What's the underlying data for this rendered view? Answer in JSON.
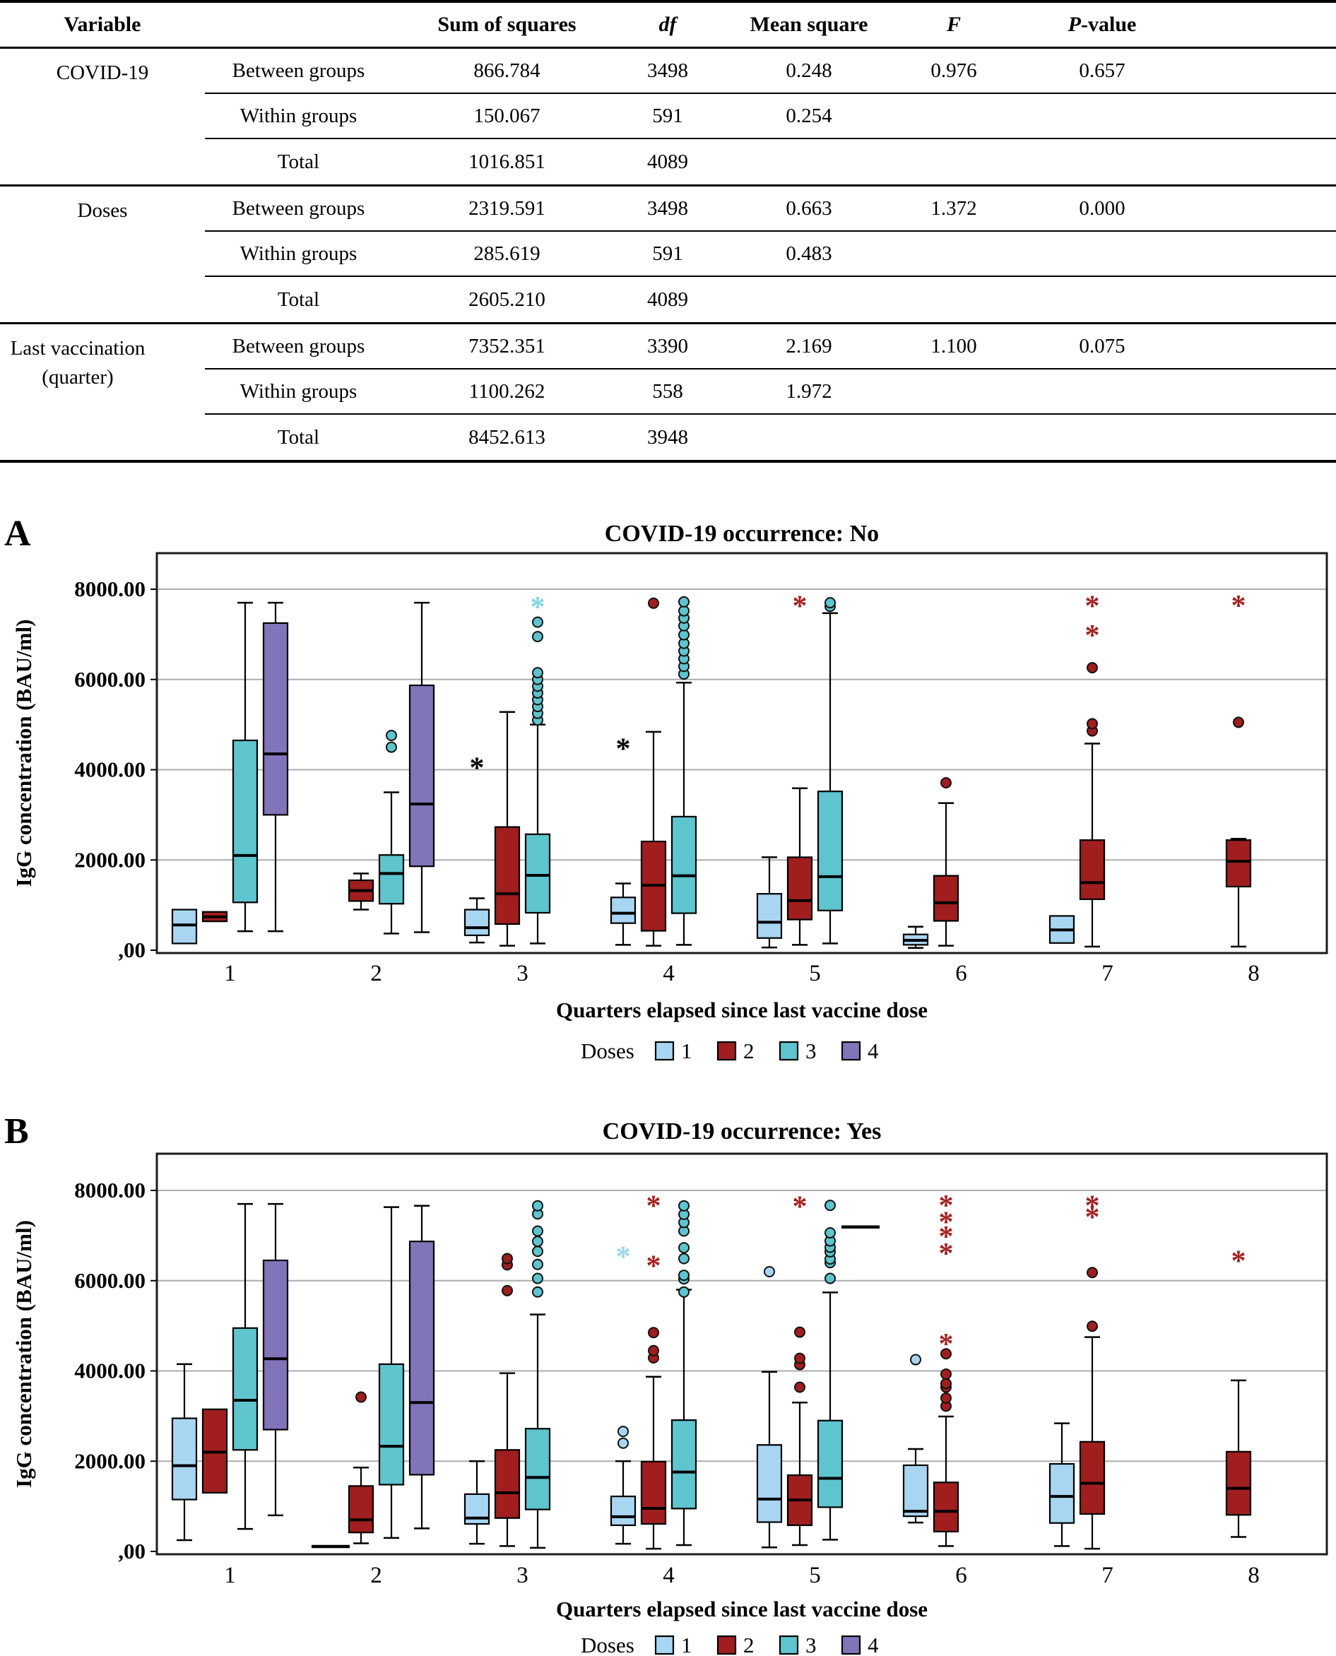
{
  "table": {
    "headers": [
      {
        "text": "Variable",
        "style": "normal"
      },
      {
        "text": "",
        "style": "normal"
      },
      {
        "text": "Sum of squares",
        "style": "normal"
      },
      {
        "text": "df",
        "style": "italic"
      },
      {
        "text": "Mean square",
        "style": "normal"
      },
      {
        "text": "F",
        "style": "italic"
      },
      {
        "text": "P-value",
        "style": "p-italic"
      }
    ],
    "groups": [
      {
        "variable": "COVID-19",
        "rows": [
          {
            "label": "Between groups",
            "ss": "866.784",
            "df": "3498",
            "ms": "0.248",
            "f": "0.976",
            "p": "0.657"
          },
          {
            "label": "Within groups",
            "ss": "150.067",
            "df": "591",
            "ms": "0.254",
            "f": "",
            "p": ""
          },
          {
            "label": "Total",
            "ss": "1016.851",
            "df": "4089",
            "ms": "",
            "f": "",
            "p": ""
          }
        ]
      },
      {
        "variable": "Doses",
        "rows": [
          {
            "label": "Between groups",
            "ss": "2319.591",
            "df": "3498",
            "ms": "0.663",
            "f": "1.372",
            "p": "0.000"
          },
          {
            "label": "Within groups",
            "ss": "285.619",
            "df": "591",
            "ms": "0.483",
            "f": "",
            "p": ""
          },
          {
            "label": "Total",
            "ss": "2605.210",
            "df": "4089",
            "ms": "",
            "f": "",
            "p": ""
          }
        ]
      },
      {
        "variable": "Last vaccination (quarter)",
        "rows": [
          {
            "label": "Between groups",
            "ss": "7352.351",
            "df": "3390",
            "ms": "2.169",
            "f": "1.100",
            "p": "0.075"
          },
          {
            "label": "Within groups",
            "ss": "1100.262",
            "df": "558",
            "ms": "1.972",
            "f": "",
            "p": ""
          },
          {
            "label": "Total",
            "ss": "8452.613",
            "df": "3948",
            "ms": "",
            "f": "",
            "p": ""
          }
        ]
      }
    ]
  },
  "chart_data": [
    {
      "type": "box",
      "panel_letter": "A",
      "title": "COVID-19 occurrence: No",
      "ylabel": "IgG concentration (BAU/ml)",
      "xlabel": "Quarters elapsed since last vaccine dose",
      "ylim": [
        0,
        8800
      ],
      "ygrid_step": 2000,
      "yticks": [
        {
          "v": 8000,
          "label": "8000.00"
        },
        {
          "v": 6000,
          "label": "6000.00"
        },
        {
          "v": 4000,
          "label": "4000.00"
        },
        {
          "v": 2000,
          "label": "2000.00"
        },
        {
          "v": 0,
          "label": ",00"
        }
      ],
      "categories": [
        "1",
        "2",
        "3",
        "4",
        "5",
        "6",
        "7",
        "8"
      ],
      "legend": {
        "title": "Doses",
        "items": [
          {
            "label": "1",
            "color": "#A8D5F2",
            "star": "#9CD4F5"
          },
          {
            "label": "2",
            "color": "#A01E1E",
            "star": "#A62121"
          },
          {
            "label": "3",
            "color": "#5EC4CE",
            "star": "#7ED5E6"
          },
          {
            "label": "4",
            "color": "#8274B8",
            "star": "#8274B8"
          }
        ]
      },
      "boxes": [
        {
          "q": 1,
          "dose": 1,
          "lo": 150,
          "q1": 150,
          "med": 560,
          "q3": 900,
          "hi": 900
        },
        {
          "q": 1,
          "dose": 2,
          "lo": 640,
          "q1": 640,
          "med": 740,
          "q3": 850,
          "hi": 850
        },
        {
          "q": 1,
          "dose": 3,
          "lo": 420,
          "q1": 1060,
          "med": 2100,
          "q3": 4650,
          "hi": 7700
        },
        {
          "q": 1,
          "dose": 4,
          "lo": 420,
          "q1": 3000,
          "med": 4350,
          "q3": 7250,
          "hi": 7700
        },
        {
          "q": 2,
          "dose": 2,
          "lo": 900,
          "q1": 1090,
          "med": 1320,
          "q3": 1550,
          "hi": 1700
        },
        {
          "q": 2,
          "dose": 3,
          "lo": 370,
          "q1": 1030,
          "med": 1700,
          "q3": 2110,
          "hi": 3500,
          "out": [
            4500,
            4760
          ]
        },
        {
          "q": 2,
          "dose": 4,
          "lo": 400,
          "q1": 1860,
          "med": 3240,
          "q3": 5870,
          "hi": 7700
        },
        {
          "q": 3,
          "dose": 1,
          "lo": 170,
          "q1": 330,
          "med": 500,
          "q3": 900,
          "hi": 1150,
          "ext": [
            4050
          ],
          "extColor": "#000000"
        },
        {
          "q": 3,
          "dose": 2,
          "lo": 100,
          "q1": 580,
          "med": 1250,
          "q3": 2730,
          "hi": 5280
        },
        {
          "q": 3,
          "dose": 3,
          "lo": 150,
          "q1": 830,
          "med": 1660,
          "q3": 2570,
          "hi": 5000,
          "out": [
            5100,
            5250,
            5400,
            5550,
            5700,
            5850,
            6000,
            6150,
            6950,
            7270
          ],
          "ext": [
            7610
          ]
        },
        {
          "q": 4,
          "dose": 1,
          "lo": 120,
          "q1": 600,
          "med": 820,
          "q3": 1170,
          "hi": 1480,
          "ext": [
            4470
          ],
          "extColor": "#000000"
        },
        {
          "q": 4,
          "dose": 2,
          "lo": 100,
          "q1": 430,
          "med": 1440,
          "q3": 2410,
          "hi": 4840,
          "out": [
            7690
          ]
        },
        {
          "q": 4,
          "dose": 3,
          "lo": 120,
          "q1": 820,
          "med": 1650,
          "q3": 2960,
          "hi": 5930,
          "out": [
            6120,
            6290,
            6460,
            6630,
            6800,
            6990,
            7190,
            7360,
            7520,
            7720
          ]
        },
        {
          "q": 5,
          "dose": 1,
          "lo": 60,
          "q1": 270,
          "med": 620,
          "q3": 1250,
          "hi": 2060
        },
        {
          "q": 5,
          "dose": 2,
          "lo": 120,
          "q1": 680,
          "med": 1100,
          "q3": 2060,
          "hi": 3590,
          "ext": [
            7630
          ]
        },
        {
          "q": 5,
          "dose": 3,
          "lo": 150,
          "q1": 880,
          "med": 1630,
          "q3": 3520,
          "hi": 7470,
          "out": [
            7620,
            7700
          ]
        },
        {
          "q": 6,
          "dose": 1,
          "lo": 50,
          "q1": 120,
          "med": 220,
          "q3": 350,
          "hi": 520
        },
        {
          "q": 6,
          "dose": 2,
          "lo": 100,
          "q1": 650,
          "med": 1050,
          "q3": 1650,
          "hi": 3260,
          "out": [
            3710
          ]
        },
        {
          "q": 7,
          "dose": 1,
          "lo": 160,
          "q1": 160,
          "med": 450,
          "q3": 760,
          "hi": 760
        },
        {
          "q": 7,
          "dose": 2,
          "lo": 80,
          "q1": 1130,
          "med": 1500,
          "q3": 2440,
          "hi": 4580,
          "out": [
            4860,
            5020,
            6260
          ],
          "ext": [
            6980,
            7630
          ]
        },
        {
          "q": 8,
          "dose": 2,
          "lo": 80,
          "q1": 1410,
          "med": 1970,
          "q3": 2440,
          "hi": 2470,
          "out": [
            5050
          ],
          "ext": [
            7640
          ]
        }
      ]
    },
    {
      "type": "box",
      "panel_letter": "B",
      "title": "COVID-19 occurrence: Yes",
      "ylabel": "IgG concentration (BAU/ml)",
      "xlabel": "Quarters elapsed since last vaccine dose",
      "ylim": [
        0,
        8800
      ],
      "ygrid_step": 2000,
      "yticks": [
        {
          "v": 8000,
          "label": "8000.00"
        },
        {
          "v": 6000,
          "label": "6000.00"
        },
        {
          "v": 4000,
          "label": "4000.00"
        },
        {
          "v": 2000,
          "label": "2000.00"
        },
        {
          "v": 0,
          "label": ",00"
        }
      ],
      "categories": [
        "1",
        "2",
        "3",
        "4",
        "5",
        "6",
        "7",
        "8"
      ],
      "legend": {
        "title": "Doses",
        "items": [
          {
            "label": "1",
            "color": "#A8D5F2",
            "star": "#9CD4F5"
          },
          {
            "label": "2",
            "color": "#A01E1E",
            "star": "#A62121"
          },
          {
            "label": "3",
            "color": "#5EC4CE",
            "star": "#7ED5E6"
          },
          {
            "label": "4",
            "color": "#8274B8",
            "star": "#8274B8"
          }
        ]
      },
      "boxes": [
        {
          "q": 1,
          "dose": 1,
          "lo": 250,
          "q1": 1150,
          "med": 1900,
          "q3": 2950,
          "hi": 4150
        },
        {
          "q": 1,
          "dose": 2,
          "lo": 1300,
          "q1": 1300,
          "med": 2200,
          "q3": 3150,
          "hi": 3150
        },
        {
          "q": 1,
          "dose": 3,
          "lo": 500,
          "q1": 2250,
          "med": 3350,
          "q3": 4950,
          "hi": 7700
        },
        {
          "q": 1,
          "dose": 4,
          "lo": 800,
          "q1": 2700,
          "med": 4270,
          "q3": 6450,
          "hi": 7700
        },
        {
          "q": 2,
          "dose": 1,
          "med": 110,
          "line_only": true
        },
        {
          "q": 2,
          "dose": 2,
          "lo": 180,
          "q1": 420,
          "med": 700,
          "q3": 1450,
          "hi": 1860,
          "out": [
            3420
          ]
        },
        {
          "q": 2,
          "dose": 3,
          "lo": 300,
          "q1": 1480,
          "med": 2330,
          "q3": 4150,
          "hi": 7630
        },
        {
          "q": 2,
          "dose": 4,
          "lo": 510,
          "q1": 1700,
          "med": 3300,
          "q3": 6870,
          "hi": 7660
        },
        {
          "q": 3,
          "dose": 1,
          "lo": 170,
          "q1": 610,
          "med": 740,
          "q3": 1270,
          "hi": 2000
        },
        {
          "q": 3,
          "dose": 2,
          "lo": 120,
          "q1": 740,
          "med": 1300,
          "q3": 2250,
          "hi": 3950,
          "out": [
            5780,
            6350,
            6490
          ]
        },
        {
          "q": 3,
          "dose": 3,
          "lo": 80,
          "q1": 930,
          "med": 1640,
          "q3": 2720,
          "hi": 5250,
          "out": [
            5750,
            6050,
            6360,
            6650,
            6870,
            7100,
            7480,
            7660
          ]
        },
        {
          "q": 4,
          "dose": 1,
          "lo": 170,
          "q1": 580,
          "med": 770,
          "q3": 1220,
          "hi": 2000,
          "out": [
            2400,
            2660
          ],
          "ext": [
            6540
          ]
        },
        {
          "q": 4,
          "dose": 2,
          "lo": 60,
          "q1": 610,
          "med": 955,
          "q3": 1990,
          "hi": 3870,
          "out": [
            4290,
            4450,
            4850
          ],
          "ext": [
            6330,
            7660
          ]
        },
        {
          "q": 4,
          "dose": 3,
          "lo": 140,
          "q1": 950,
          "med": 1760,
          "q3": 2910,
          "hi": 5800,
          "out": [
            5750,
            6040,
            6120,
            6490,
            6730,
            7100,
            7290,
            7470,
            7660
          ]
        },
        {
          "q": 5,
          "dose": 1,
          "lo": 90,
          "q1": 650,
          "med": 1160,
          "q3": 2360,
          "hi": 3980,
          "out": [
            6200
          ]
        },
        {
          "q": 5,
          "dose": 2,
          "lo": 140,
          "q1": 580,
          "med": 1140,
          "q3": 1690,
          "hi": 3300,
          "out": [
            3640,
            4140,
            4280,
            4860
          ],
          "ext": [
            7650
          ]
        },
        {
          "q": 5,
          "dose": 3,
          "lo": 260,
          "q1": 980,
          "med": 1620,
          "q3": 2900,
          "hi": 5740,
          "out": [
            6050,
            6400,
            6480,
            6640,
            6740,
            6880,
            7060,
            7670
          ]
        },
        {
          "q": 5,
          "dose": 4,
          "med": 7190,
          "line_only": true
        },
        {
          "q": 6,
          "dose": 1,
          "lo": 640,
          "q1": 780,
          "med": 890,
          "q3": 1910,
          "hi": 2270,
          "out": [
            4250
          ]
        },
        {
          "q": 6,
          "dose": 2,
          "lo": 120,
          "q1": 440,
          "med": 890,
          "q3": 1530,
          "hi": 2990,
          "out": [
            3220,
            3400,
            3640,
            3720,
            3930,
            4380
          ],
          "ext": [
            4600,
            6610,
            6980,
            7300,
            7670
          ]
        },
        {
          "q": 7,
          "dose": 1,
          "lo": 120,
          "q1": 630,
          "med": 1220,
          "q3": 1940,
          "hi": 2840
        },
        {
          "q": 7,
          "dose": 2,
          "lo": 60,
          "q1": 830,
          "med": 1510,
          "q3": 2430,
          "hi": 4750,
          "out": [
            4990,
            6180
          ],
          "ext": [
            7410,
            7660
          ]
        },
        {
          "q": 8,
          "dose": 2,
          "lo": 320,
          "q1": 810,
          "med": 1400,
          "q3": 2210,
          "hi": 3790,
          "ext": [
            6440
          ]
        }
      ]
    }
  ],
  "colors": {
    "gridline": "#ACACAC",
    "frame": "#1b1b1b",
    "median": "#000000"
  }
}
